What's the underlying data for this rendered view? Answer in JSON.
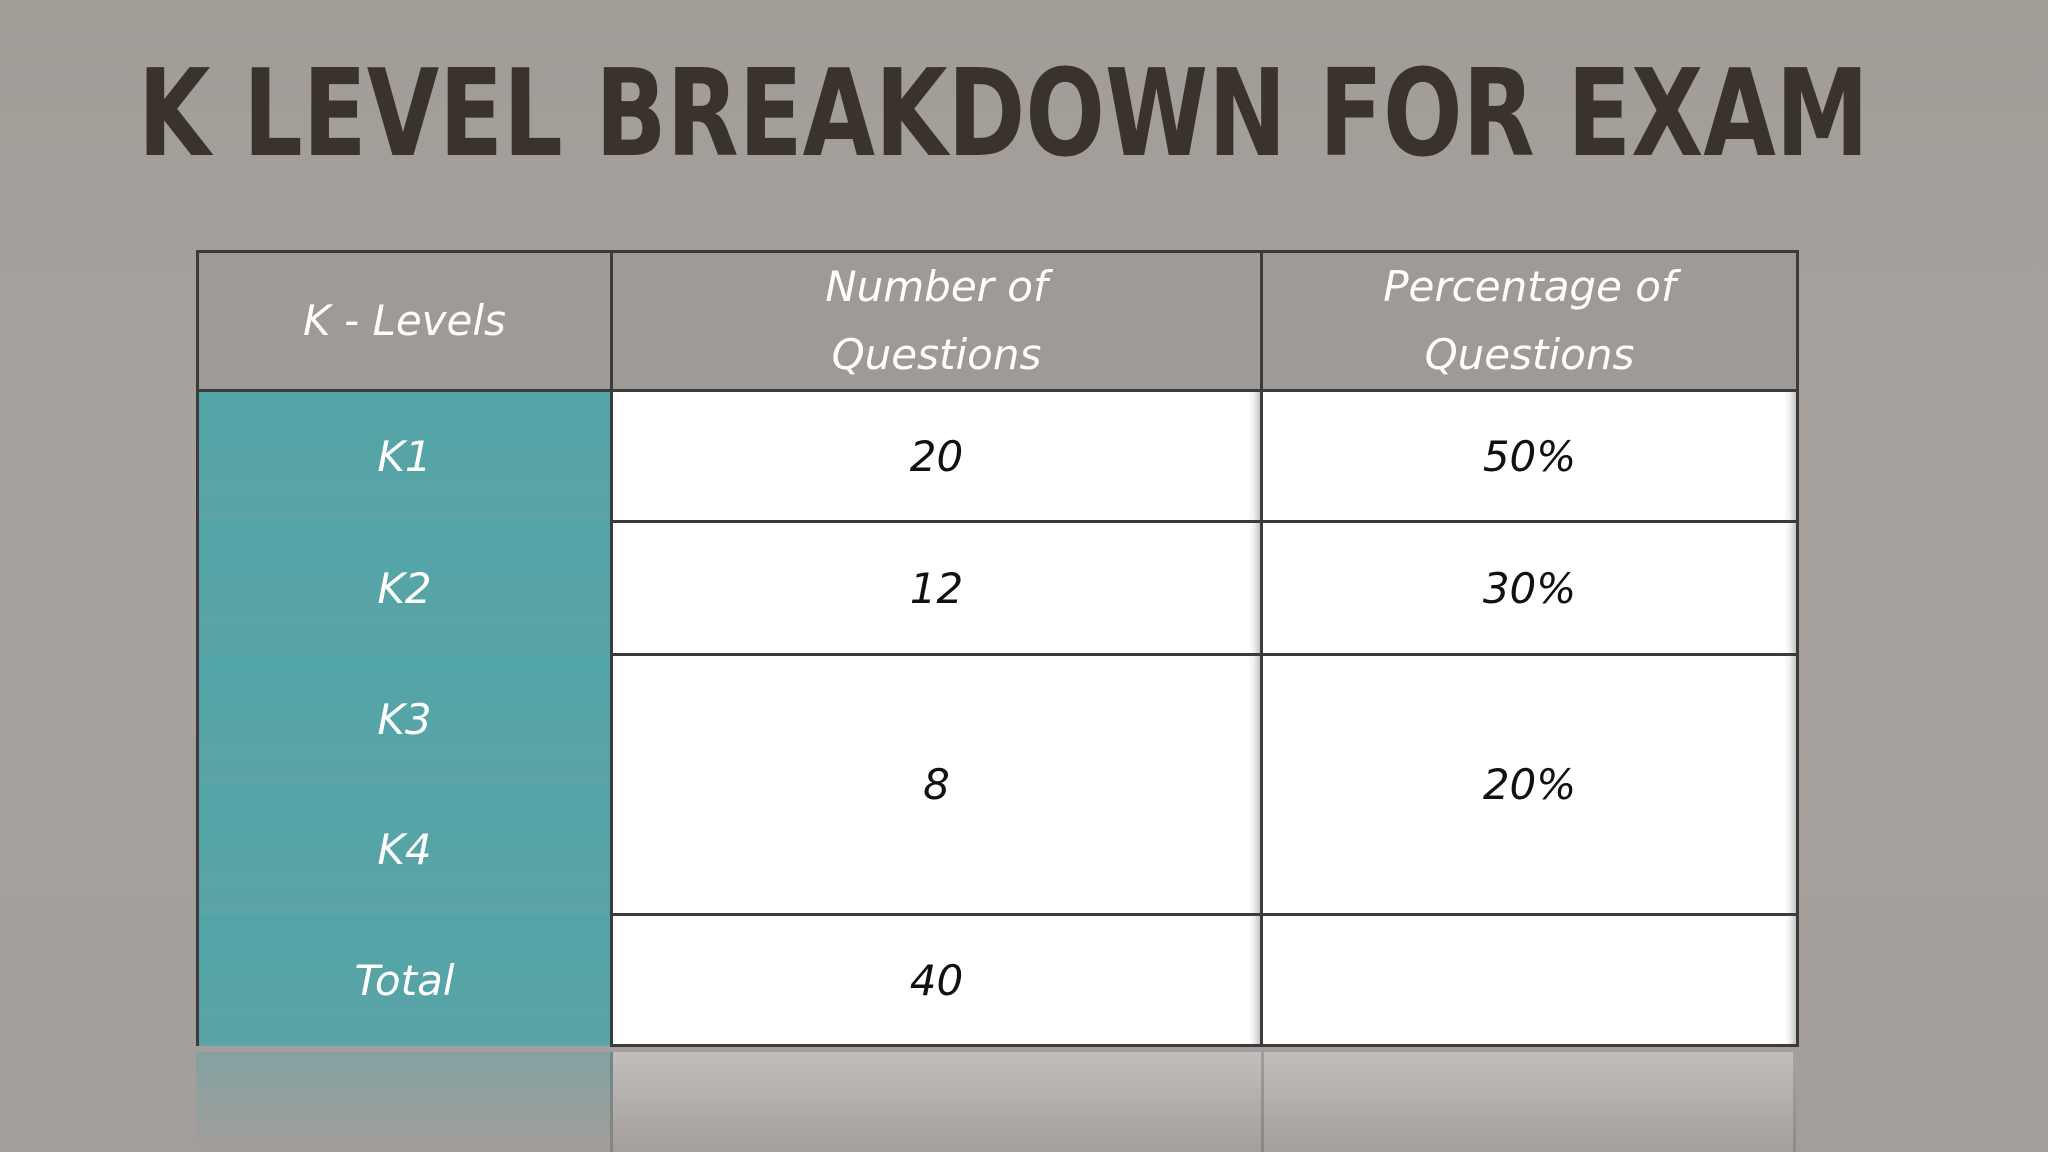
{
  "title": "K LEVEL BREAKDOWN FOR EXAM",
  "table": {
    "headers": {
      "col1": "K - Levels",
      "col2_line1": "Number of",
      "col2_line2": "Questions",
      "col3_line1": "Percentage of",
      "col3_line2": "Questions"
    },
    "rows": [
      {
        "level": "K1",
        "count": "20",
        "percent": "50%"
      },
      {
        "level": "K2",
        "count": "12",
        "percent": "30%"
      },
      {
        "level": "K3",
        "count": "8",
        "percent": "20%"
      },
      {
        "level": "K4"
      },
      {
        "level": "Total",
        "count": "40",
        "percent": ""
      }
    ]
  },
  "colors": {
    "title": "#3a332c",
    "header_bg": "#a09a97",
    "level_col_bg": "#56a5a7",
    "cell_bg": "#ffffff",
    "background": "#a5a09c"
  }
}
